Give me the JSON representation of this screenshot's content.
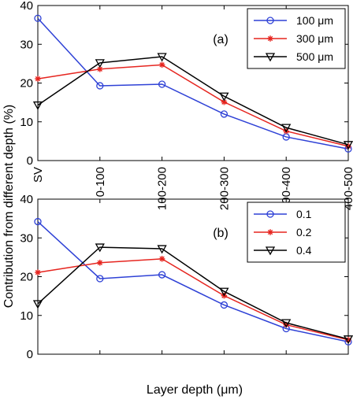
{
  "figure": {
    "ylabel": "Contribution from different depth (%)",
    "xlabel": "Layer depth (μm)"
  },
  "chart_data": [
    {
      "type": "line",
      "panel_label": "(a)",
      "categories": [
        "SV",
        "0-100",
        "100-200",
        "200-300",
        "300-400",
        "400-500"
      ],
      "ylim": [
        0,
        40
      ],
      "yticks": [
        0,
        10,
        20,
        30,
        40
      ],
      "legend_position": "top-right",
      "series": [
        {
          "name": "100 μm",
          "color": "#2e41d6",
          "marker": "circle",
          "values": [
            36.7,
            19.3,
            19.7,
            12.0,
            6.1,
            3.0
          ]
        },
        {
          "name": "300 μm",
          "color": "#e6251f",
          "marker": "star",
          "values": [
            21.1,
            23.6,
            24.7,
            15.1,
            7.6,
            3.7
          ]
        },
        {
          "name": "500 μm",
          "color": "#000000",
          "marker": "triangle-down",
          "values": [
            14.3,
            25.2,
            26.8,
            16.6,
            8.5,
            4.1
          ]
        }
      ]
    },
    {
      "type": "line",
      "panel_label": "(b)",
      "categories": [
        "SV",
        "0-100",
        "100-200",
        "200-300",
        "300-400",
        "400-500"
      ],
      "ylim": [
        0,
        40
      ],
      "yticks": [
        0,
        10,
        20,
        30,
        40
      ],
      "legend_position": "top-right",
      "series": [
        {
          "name": "0.1",
          "color": "#2e41d6",
          "marker": "circle",
          "values": [
            34.2,
            19.5,
            20.5,
            12.7,
            6.6,
            3.2
          ]
        },
        {
          "name": "0.2",
          "color": "#e6251f",
          "marker": "star",
          "values": [
            21.1,
            23.6,
            24.6,
            15.1,
            7.6,
            3.7
          ]
        },
        {
          "name": "0.4",
          "color": "#000000",
          "marker": "triangle-down",
          "values": [
            13.0,
            27.6,
            27.2,
            16.2,
            8.1,
            3.9
          ]
        }
      ]
    }
  ]
}
